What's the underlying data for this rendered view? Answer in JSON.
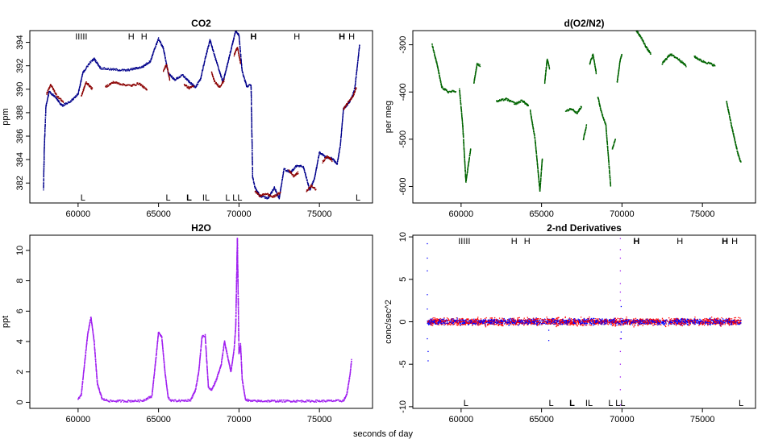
{
  "figure": {
    "xlabel": "seconds of day"
  },
  "chart_data": [
    {
      "type": "scatter",
      "title": "CO2",
      "ylabel": "ppm",
      "xlim": [
        57000,
        78300
      ],
      "ylim": [
        380.3,
        395
      ],
      "xticks": [
        60000,
        65000,
        70000,
        75000
      ],
      "yticks": [
        382,
        384,
        386,
        388,
        390,
        392,
        394
      ],
      "colors": {
        "series1": "#00008b",
        "series2": "#8b0000"
      },
      "marker_size": 1.3,
      "series": [
        {
          "color_key": "series1",
          "segments": [
            {
              "x": [
                57850,
                57900,
                58000,
                58200,
                58600,
                59000,
                59500,
                60000,
                60300,
                60700,
                61000,
                61400,
                62000,
                63000,
                64000,
                64500,
                64800,
                65000,
                65300,
                65600,
                66000,
                66500,
                67000,
                67300,
                67600,
                67900,
                68200,
                68500,
                69000,
                69300,
                69600,
                69800,
                70000,
                70200,
                70500,
                70750,
                70850,
                71000,
                71300,
                71800,
                72200,
                72500,
                72800,
                73200,
                73600,
                74000,
                74400,
                74700,
                75000,
                75400,
                75800,
                76100,
                76300,
                76500,
                76700,
                77000,
                77200,
                77400,
                77500
              ],
              "y": [
                381.5,
                385,
                388.5,
                389.8,
                389.3,
                388.6,
                388.9,
                389.6,
                391.4,
                392.2,
                392.6,
                391.8,
                391.7,
                391.6,
                391.9,
                392.4,
                393.6,
                394.3,
                393.5,
                391.4,
                390.8,
                391.2,
                390.5,
                390.2,
                390.8,
                392.6,
                394.2,
                392.8,
                390.6,
                392.2,
                393.9,
                395,
                394.6,
                391.5,
                390.2,
                390.4,
                382.5,
                381.6,
                380.9,
                380.7,
                381.6,
                380.7,
                383.2,
                382.9,
                383.5,
                383.4,
                381.4,
                382.4,
                384.6,
                384.2,
                384.1,
                383.6,
                385.2,
                388.4,
                388.6,
                389.2,
                390.1,
                392.5,
                393.8
              ]
            }
          ]
        },
        {
          "color_key": "series2",
          "segments": [
            {
              "x": [
                58050,
                58300,
                58700,
                59100
              ],
              "y": [
                389.6,
                390.4,
                389.4,
                388.9
              ]
            },
            {
              "x": [
                60200,
                60500,
                60900
              ],
              "y": [
                389.4,
                390.6,
                390.0
              ]
            },
            {
              "x": [
                61700,
                62200,
                62800,
                63300,
                63800,
                64300
              ],
              "y": [
                390.2,
                390.6,
                390.4,
                390.3,
                390.5,
                389.9
              ]
            },
            {
              "x": [
                65300,
                65500,
                65700
              ],
              "y": [
                391.6,
                392.1,
                390.8
              ]
            },
            {
              "x": [
                66600,
                66900,
                67200
              ],
              "y": [
                390.4,
                390.1,
                390.3
              ]
            },
            {
              "x": [
                68300,
                68500,
                68800,
                69100
              ],
              "y": [
                391.4,
                390.6,
                390.2,
                390.8
              ]
            },
            {
              "x": [
                69700,
                69900,
                70100
              ],
              "y": [
                392.9,
                393.6,
                392.2
              ]
            },
            {
              "x": [
                71000,
                71300,
                71700,
                72100,
                72600
              ],
              "y": [
                381.3,
                380.9,
                381.1,
                380.8,
                381.2
              ]
            },
            {
              "x": [
                73100,
                73400,
                73700
              ],
              "y": [
                383.1,
                382.6,
                382.9
              ]
            },
            {
              "x": [
                74200,
                74500,
                74800
              ],
              "y": [
                381.3,
                381.8,
                381.4
              ]
            },
            {
              "x": [
                75200,
                75500,
                75800
              ],
              "y": [
                383.8,
                384.3,
                383.9
              ]
            },
            {
              "x": [
                76500,
                76800,
                77100,
                77300
              ],
              "y": [
                388.3,
                388.9,
                389.4,
                390.2
              ]
            }
          ]
        }
      ],
      "top_flags": [
        {
          "x": 60200,
          "label": "IIIII",
          "bold": false
        },
        {
          "x": 63300,
          "label": "H",
          "bold": false
        },
        {
          "x": 64100,
          "label": "H",
          "bold": false
        },
        {
          "x": 70900,
          "label": "H",
          "bold": true
        },
        {
          "x": 73600,
          "label": "H",
          "bold": false
        },
        {
          "x": 76400,
          "label": "H",
          "bold": true
        },
        {
          "x": 77000,
          "label": "H",
          "bold": false
        }
      ],
      "bottom_flags": [
        {
          "x": 60300,
          "label": "L",
          "bold": false
        },
        {
          "x": 65600,
          "label": "L",
          "bold": false
        },
        {
          "x": 66900,
          "label": "L",
          "bold": true
        },
        {
          "x": 67950,
          "label": "IL",
          "bold": false
        },
        {
          "x": 69300,
          "label": "L",
          "bold": false
        },
        {
          "x": 69900,
          "label": "LL",
          "bold": false
        },
        {
          "x": 77400,
          "label": "L",
          "bold": false
        }
      ]
    },
    {
      "type": "scatter",
      "title": "d(O2/N2)",
      "ylabel": "per meg",
      "xlim": [
        57000,
        78300
      ],
      "ylim": [
        -635,
        -270
      ],
      "xticks": [
        60000,
        65000,
        70000,
        75000
      ],
      "yticks": [
        -600,
        -500,
        -400,
        -300
      ],
      "colors": {
        "series1": "#006400"
      },
      "marker_size": 1.4,
      "series": [
        {
          "color_key": "series1",
          "segments": [
            {
              "x": [
                58200,
                58500,
                58800,
                59200,
                59700
              ],
              "y": [
                -300,
                -340,
                -390,
                -400,
                -398
              ]
            },
            {
              "x": [
                59900,
                60100,
                60300,
                60600
              ],
              "y": [
                -395,
                -470,
                -590,
                -520
              ]
            },
            {
              "x": [
                60800,
                61000,
                61200
              ],
              "y": [
                -380,
                -340,
                -345
              ]
            },
            {
              "x": [
                62200,
                62800,
                63400,
                63800,
                64200
              ],
              "y": [
                -420,
                -415,
                -425,
                -418,
                -430
              ]
            },
            {
              "x": [
                64300,
                64600,
                64900,
                65050
              ],
              "y": [
                -440,
                -500,
                -610,
                -540
              ]
            },
            {
              "x": [
                65200,
                65350,
                65500
              ],
              "y": [
                -380,
                -330,
                -350
              ]
            },
            {
              "x": [
                66500,
                66900,
                67200,
                67500
              ],
              "y": [
                -440,
                -435,
                -445,
                -430
              ]
            },
            {
              "x": [
                67600,
                67800
              ],
              "y": [
                -500,
                -470
              ]
            },
            {
              "x": [
                68000,
                68200,
                68400
              ],
              "y": [
                -340,
                -320,
                -360
              ]
            },
            {
              "x": [
                68500,
                68700,
                69000,
                69300
              ],
              "y": [
                -410,
                -440,
                -470,
                -600
              ]
            },
            {
              "x": [
                69400,
                69600
              ],
              "y": [
                -520,
                -500
              ]
            },
            {
              "x": [
                69700,
                69900,
                70000
              ],
              "y": [
                -380,
                -330,
                -320
              ]
            },
            {
              "x": [
                70900,
                71200,
                71500,
                71800
              ],
              "y": [
                -270,
                -285,
                -305,
                -320
              ]
            },
            {
              "x": [
                72500,
                73000,
                73500,
                74000
              ],
              "y": [
                -340,
                -320,
                -330,
                -345
              ]
            },
            {
              "x": [
                74500,
                75000,
                75500,
                75800
              ],
              "y": [
                -325,
                -335,
                -340,
                -345
              ]
            },
            {
              "x": [
                76500,
                76800,
                77000,
                77200,
                77400
              ],
              "y": [
                -420,
                -470,
                -500,
                -530,
                -550
              ]
            }
          ]
        }
      ],
      "top_flags": [],
      "bottom_flags": []
    },
    {
      "type": "scatter",
      "title": "H2O",
      "ylabel": "ppt",
      "xlim": [
        57000,
        78300
      ],
      "ylim": [
        -0.4,
        11
      ],
      "xticks": [
        60000,
        65000,
        70000,
        75000
      ],
      "yticks": [
        0,
        2,
        4,
        6,
        8,
        10
      ],
      "colors": {
        "series1": "#a020f0"
      },
      "marker_size": 1.4,
      "series": [
        {
          "color_key": "series1",
          "segments": [
            {
              "x": [
                60000,
                60200,
                60400,
                60600,
                60800,
                61000,
                61200,
                61500,
                62000,
                63000,
                64000,
                64600
              ],
              "y": [
                0.2,
                0.5,
                2.5,
                4.5,
                5.6,
                4.0,
                1.2,
                0.2,
                0.08,
                0.08,
                0.1,
                0.4
              ]
            },
            {
              "x": [
                64600,
                64800,
                65000,
                65200,
                65400,
                65600,
                65800,
                66500,
                67000,
                67300,
                67500
              ],
              "y": [
                0.5,
                2.5,
                4.6,
                4.3,
                2.0,
                0.3,
                0.1,
                0.1,
                0.15,
                0.8,
                2.0
              ]
            },
            {
              "x": [
                67500,
                67700,
                67900,
                68100,
                68300,
                68600,
                68900,
                69100,
                69300,
                69500,
                69700,
                69800,
                69900,
                70000,
                70100,
                70200,
                70400,
                70700,
                71500,
                73000,
                75000,
                76500,
                76700,
                76900,
                77000
              ],
              "y": [
                2.0,
                4.3,
                4.4,
                1.0,
                0.8,
                1.5,
                2.5,
                4.0,
                3.0,
                2.0,
                3.5,
                5.0,
                10.8,
                3.2,
                3.8,
                1.5,
                0.2,
                0.08,
                0.08,
                0.08,
                0.08,
                0.1,
                0.5,
                1.8,
                2.8
              ]
            }
          ]
        }
      ],
      "top_flags": [],
      "bottom_flags": []
    },
    {
      "type": "scatter",
      "title": "2-nd Derivatives",
      "ylabel": "conc/sec^2",
      "xlim": [
        57000,
        78300
      ],
      "ylim": [
        -10.2,
        10.2
      ],
      "xticks": [
        60000,
        65000,
        70000,
        75000
      ],
      "yticks": [
        -10,
        -5,
        0,
        5,
        10
      ],
      "colors": {
        "series1": "#ff0000",
        "series2": "#0000ff",
        "series3": "#a020f0"
      },
      "marker_size": 1.3,
      "band": {
        "x_from": 57900,
        "x_to": 77400,
        "half_width_red": 0.45,
        "half_width_blue": 0.35
      },
      "series": [
        {
          "color_key": "series2",
          "segments": [
            {
              "x": [
                57900,
                57900,
                57900,
                57900,
                57900,
                57900,
                57950,
                57950
              ],
              "y": [
                9.2,
                7.5,
                6.0,
                3.2,
                1.5,
                -2.0,
                -3.5,
                -4.6
              ]
            },
            {
              "x": [
                65450,
                65450
              ],
              "y": [
                -1.0,
                -2.2
              ]
            },
            {
              "x": [
                69950,
                69950,
                69950
              ],
              "y": [
                -1.2,
                -2.0,
                1.8
              ]
            }
          ]
        },
        {
          "color_key": "series3",
          "segments": [
            {
              "x": [
                69900,
                69900,
                69900,
                69900,
                69900,
                69900,
                69900,
                69900,
                69900,
                69900,
                69900,
                69900,
                69900
              ],
              "y": [
                9.8,
                8.5,
                7.5,
                6.0,
                4.5,
                3.5,
                2.5,
                -2.0,
                -3.5,
                -5.0,
                -6.5,
                -8.0,
                -9.8
              ]
            }
          ]
        }
      ],
      "top_flags": [
        {
          "x": 60200,
          "label": "IIIII",
          "bold": false
        },
        {
          "x": 63300,
          "label": "H",
          "bold": false
        },
        {
          "x": 64100,
          "label": "H",
          "bold": false
        },
        {
          "x": 70900,
          "label": "H",
          "bold": true
        },
        {
          "x": 73600,
          "label": "H",
          "bold": false
        },
        {
          "x": 76400,
          "label": "H",
          "bold": true
        },
        {
          "x": 77000,
          "label": "H",
          "bold": false
        }
      ],
      "bottom_flags": [
        {
          "x": 60300,
          "label": "L",
          "bold": false
        },
        {
          "x": 65600,
          "label": "L",
          "bold": false
        },
        {
          "x": 66900,
          "label": "L",
          "bold": true
        },
        {
          "x": 67950,
          "label": "IL",
          "bold": false
        },
        {
          "x": 69300,
          "label": "L",
          "bold": false
        },
        {
          "x": 69900,
          "label": "LL",
          "bold": false
        },
        {
          "x": 77400,
          "label": "L",
          "bold": false
        }
      ]
    }
  ]
}
